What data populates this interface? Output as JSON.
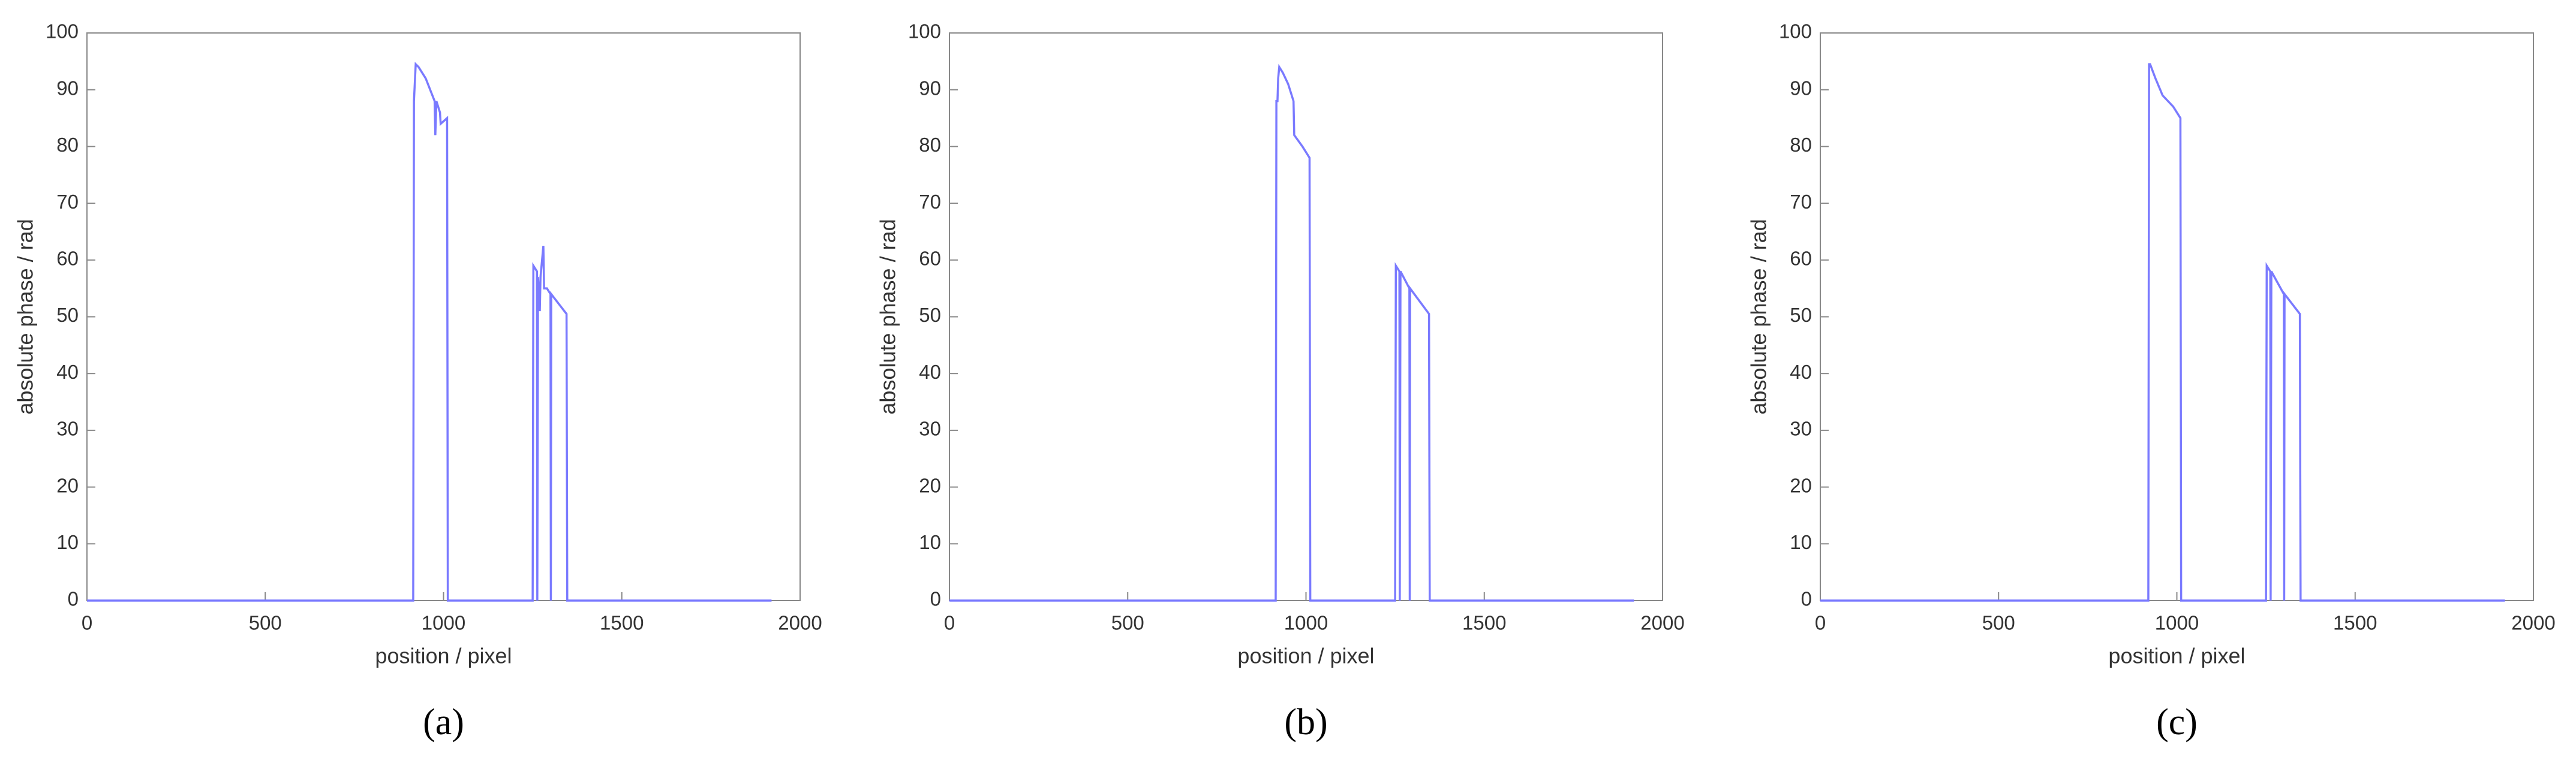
{
  "chart_data": [
    {
      "type": "line",
      "caption": "(a)",
      "xlabel": "position / pixel",
      "ylabel": "absolute phase / rad",
      "xlim": [
        0,
        2000
      ],
      "xticks": [
        0,
        500,
        1000,
        1500,
        2000
      ],
      "ylim": [
        0,
        100
      ],
      "yticks": [
        0,
        10,
        20,
        30,
        40,
        50,
        60,
        70,
        80,
        90,
        100
      ],
      "x": [
        0,
        915,
        917,
        922,
        930,
        950,
        975,
        977,
        980,
        985,
        990,
        992,
        1010,
        1012,
        1250,
        1252,
        1262,
        1263,
        1265,
        1270,
        1272,
        1280,
        1282,
        1290,
        1300,
        1301,
        1302,
        1345,
        1347,
        1920
      ],
      "series": [
        {
          "color": "#7a7aff",
          "values": [
            0,
            0,
            88,
            94.5,
            94,
            92,
            88,
            82,
            88,
            87,
            86,
            84,
            85,
            0,
            0,
            59,
            58,
            0,
            57,
            51,
            57,
            62.5,
            55,
            55,
            54,
            0,
            54,
            50.5,
            0,
            0
          ]
        }
      ]
    },
    {
      "type": "line",
      "caption": "(b)",
      "xlabel": "position / pixel",
      "ylabel": "absolute phase / rad",
      "xlim": [
        0,
        2000
      ],
      "xticks": [
        0,
        500,
        1000,
        1500,
        2000
      ],
      "ylim": [
        0,
        100
      ],
      "yticks": [
        0,
        10,
        20,
        30,
        40,
        50,
        60,
        70,
        80,
        90,
        100
      ],
      "x": [
        0,
        915,
        917,
        920,
        922,
        925,
        935,
        950,
        965,
        967,
        990,
        1010,
        1012,
        1250,
        1252,
        1262,
        1263,
        1265,
        1290,
        1291,
        1292,
        1345,
        1347,
        1920
      ],
      "series": [
        {
          "color": "#7a7aff",
          "values": [
            0,
            0,
            88,
            88,
            92,
            94,
            93,
            91,
            88,
            82,
            80,
            78,
            0,
            0,
            59,
            58,
            0,
            58,
            55,
            0,
            55,
            50.5,
            0,
            0
          ]
        }
      ]
    },
    {
      "type": "line",
      "caption": "(c)",
      "xlabel": "position / pixel",
      "ylabel": "absolute phase / rad",
      "xlim": [
        0,
        2000
      ],
      "xticks": [
        0,
        500,
        1000,
        1500,
        2000
      ],
      "ylim": [
        0,
        100
      ],
      "yticks": [
        0,
        10,
        20,
        30,
        40,
        50,
        60,
        70,
        80,
        90,
        100
      ],
      "x": [
        0,
        920,
        922,
        925,
        940,
        960,
        990,
        1010,
        1012,
        1250,
        1252,
        1262,
        1263,
        1265,
        1300,
        1301,
        1302,
        1345,
        1347,
        1920
      ],
      "series": [
        {
          "color": "#7a7aff",
          "values": [
            0,
            0,
            94.5,
            94.5,
            92,
            89,
            87,
            85,
            0,
            0,
            59,
            58,
            0,
            58,
            54,
            0,
            54,
            50.5,
            0,
            0
          ]
        }
      ]
    }
  ]
}
